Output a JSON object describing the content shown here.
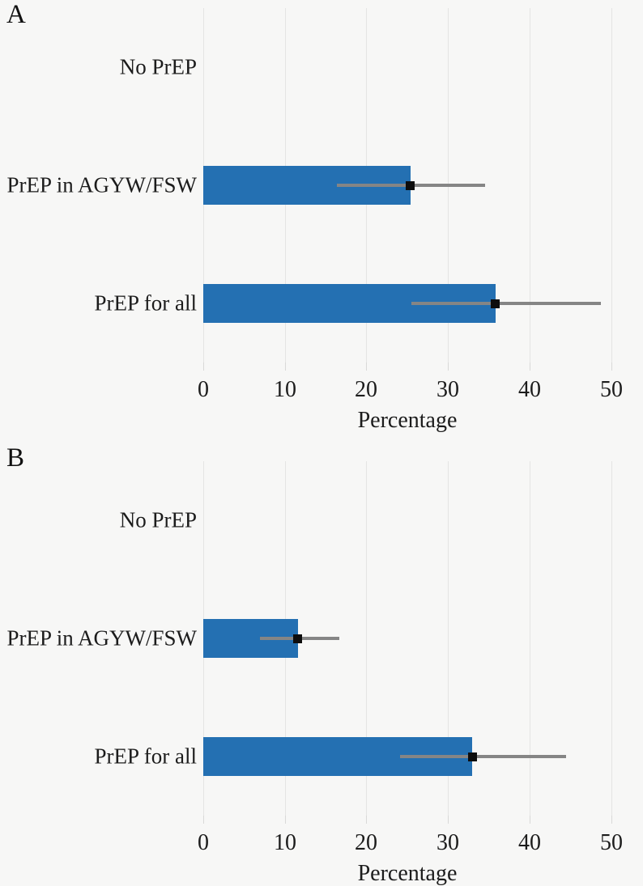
{
  "figure": {
    "background_color": "#f7f7f6",
    "bar_color": "#2470b2",
    "grid_color": "#e4e4e3",
    "tick_mark_color": "#d9d9d8",
    "error_bar_color": "#858585",
    "marker_color": "#0d0d0d",
    "text_color": "#1c1c1c"
  },
  "chart_data": [
    {
      "type": "bar",
      "panel": "A",
      "orientation": "horizontal",
      "title": "",
      "xlabel": "Percentage",
      "ylabel": "",
      "categories": [
        "No PrEP",
        "PrEP in AGYW/FSW",
        "PrEP for all"
      ],
      "values": [
        0,
        25.4,
        35.8
      ],
      "ci_low": [
        null,
        16.4,
        25.5
      ],
      "ci_high": [
        null,
        34.6,
        48.7
      ],
      "xticks": [
        0,
        10,
        20,
        30,
        40,
        50
      ],
      "xlim": [
        0,
        53.7
      ],
      "grid": true,
      "error_bars": true,
      "point_marker": "square",
      "legend": "none"
    },
    {
      "type": "bar",
      "panel": "B",
      "orientation": "horizontal",
      "title": "",
      "xlabel": "Percentage",
      "ylabel": "",
      "categories": [
        "No PrEP",
        "PrEP in AGYW/FSW",
        "PrEP for all"
      ],
      "values": [
        0,
        11.6,
        33.0
      ],
      "ci_low": [
        null,
        6.9,
        24.1
      ],
      "ci_high": [
        null,
        16.6,
        44.4
      ],
      "xticks": [
        0,
        10,
        20,
        30,
        40,
        50
      ],
      "xlim": [
        0,
        53.7
      ],
      "grid": true,
      "error_bars": true,
      "point_marker": "square",
      "legend": "none"
    }
  ]
}
